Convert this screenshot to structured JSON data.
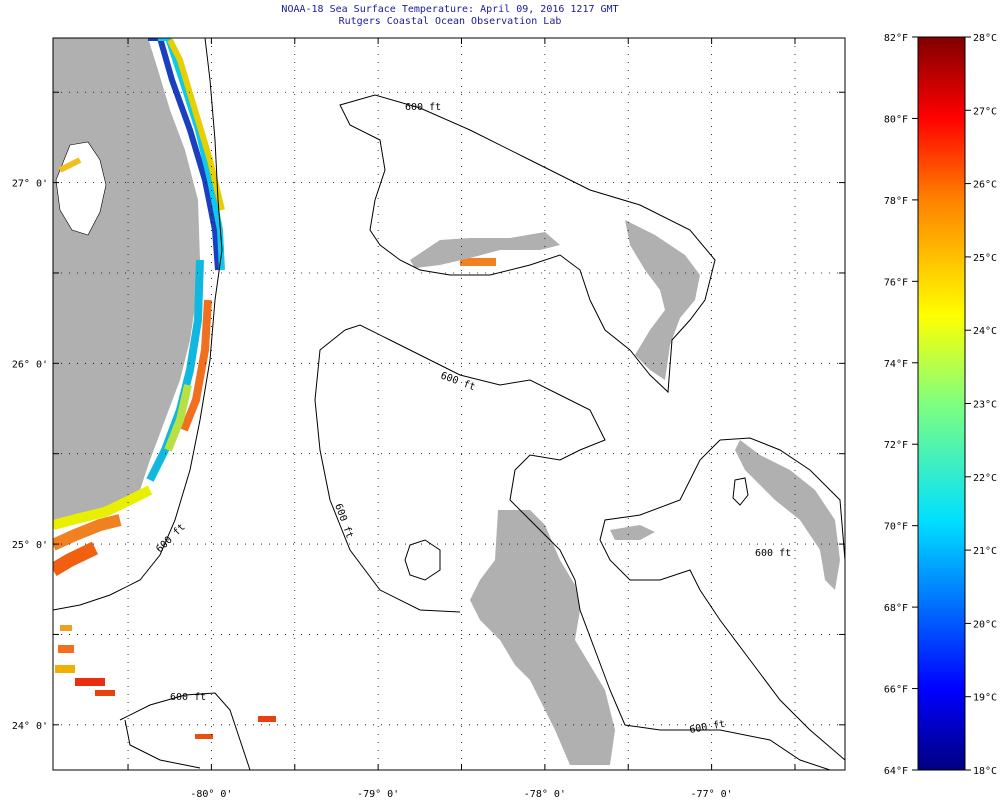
{
  "header": {
    "title": "NOAA-18 Sea Surface Temperature:  April 09, 2016 1217 GMT",
    "subtitle": "Rutgers Coastal Ocean Observation Lab"
  },
  "map": {
    "lon_range": [
      -80.95,
      -76.2
    ],
    "lat_range": [
      23.75,
      27.8
    ],
    "lon_ticks": [
      {
        "v": -80,
        "label": "-80° 0'"
      },
      {
        "v": -79,
        "label": "-79° 0'"
      },
      {
        "v": -78,
        "label": "-78° 0'"
      },
      {
        "v": -77,
        "label": "-77° 0'"
      }
    ],
    "lat_ticks": [
      {
        "v": 27,
        "label": "27° 0'"
      },
      {
        "v": 26,
        "label": "26° 0'"
      },
      {
        "v": 25,
        "label": "25° 0'"
      },
      {
        "v": 24,
        "label": "24° 0'"
      }
    ],
    "grid_lon": [
      -80.5,
      -80,
      -79.5,
      -79,
      -78.5,
      -78,
      -77.5,
      -77,
      -76.5
    ],
    "grid_lat": [
      27.5,
      27,
      26.5,
      26,
      25.5,
      25,
      24.5,
      24
    ],
    "contour_label": "600 ft",
    "land_color": "#b0b0b0"
  },
  "colorbar": {
    "f_labels": [
      "82°F",
      "80°F",
      "78°F",
      "76°F",
      "74°F",
      "72°F",
      "70°F",
      "68°F",
      "66°F",
      "64°F"
    ],
    "c_labels": [
      "28°C",
      "27°C",
      "26°C",
      "25°C",
      "24°C",
      "23°C",
      "22°C",
      "21°C",
      "20°C",
      "19°C",
      "18°C"
    ],
    "f_range": [
      64,
      82
    ],
    "c_range": [
      18,
      28
    ]
  }
}
